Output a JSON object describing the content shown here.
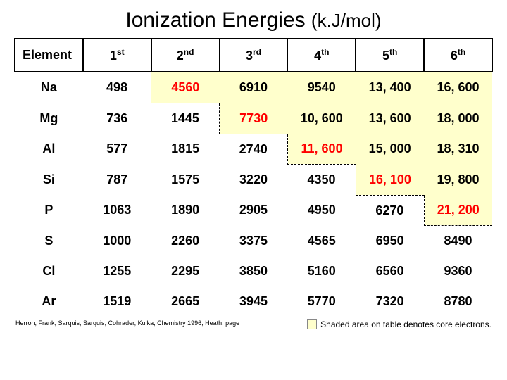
{
  "title_main": "Ionization Energies ",
  "title_unit": "(k.J/mol)",
  "columns": [
    {
      "label_pre": "Element",
      "label_sup": ""
    },
    {
      "label_pre": "1",
      "label_sup": "st"
    },
    {
      "label_pre": "2",
      "label_sup": "nd"
    },
    {
      "label_pre": "3",
      "label_sup": "rd"
    },
    {
      "label_pre": "4",
      "label_sup": "th"
    },
    {
      "label_pre": "5",
      "label_sup": "th"
    },
    {
      "label_pre": "6",
      "label_sup": "th"
    }
  ],
  "rows": [
    {
      "el": "Na",
      "v": [
        "498",
        "4560",
        "6910",
        "9540",
        "13, 400",
        "16, 600"
      ],
      "hi": 1,
      "shade_from": 1
    },
    {
      "el": "Mg",
      "v": [
        "736",
        "1445",
        "7730",
        "10, 600",
        "13, 600",
        "18, 000"
      ],
      "hi": 2,
      "shade_from": 2
    },
    {
      "el": "Al",
      "v": [
        "577",
        "1815",
        "2740",
        "11, 600",
        "15, 000",
        "18, 310"
      ],
      "hi": 3,
      "shade_from": 3
    },
    {
      "el": "Si",
      "v": [
        "787",
        "1575",
        "3220",
        "4350",
        "16, 100",
        "19, 800"
      ],
      "hi": 4,
      "shade_from": 4
    },
    {
      "el": "P",
      "v": [
        "1063",
        "1890",
        "2905",
        "4950",
        "6270",
        "21, 200"
      ],
      "hi": 5,
      "shade_from": 5
    },
    {
      "el": "S",
      "v": [
        "1000",
        "2260",
        "3375",
        "4565",
        "6950",
        "8490"
      ],
      "hi": -1,
      "shade_from": 99
    },
    {
      "el": "Cl",
      "v": [
        "1255",
        "2295",
        "3850",
        "5160",
        "6560",
        "9360"
      ],
      "hi": -1,
      "shade_from": 99
    },
    {
      "el": "Ar",
      "v": [
        "1519",
        "2665",
        "3945",
        "5770",
        "7320",
        "8780"
      ],
      "hi": -1,
      "shade_from": 99
    }
  ],
  "footer_citation": "Herron, Frank, Sarquis, Sarquis, Cohrader, Kulka, Chemistry 1996, Heath, page",
  "legend_text": "Shaded area on table denotes core electrons.",
  "colors": {
    "shaded_bg": "#ffffcc",
    "highlight_text": "#ff0000",
    "page_bg": "#ffffff",
    "border": "#000000"
  },
  "typography": {
    "title_fontsize": 30,
    "cell_fontsize": 18,
    "footer_fontsize": 9,
    "legend_fontsize": 12,
    "font_family": "Arial"
  }
}
